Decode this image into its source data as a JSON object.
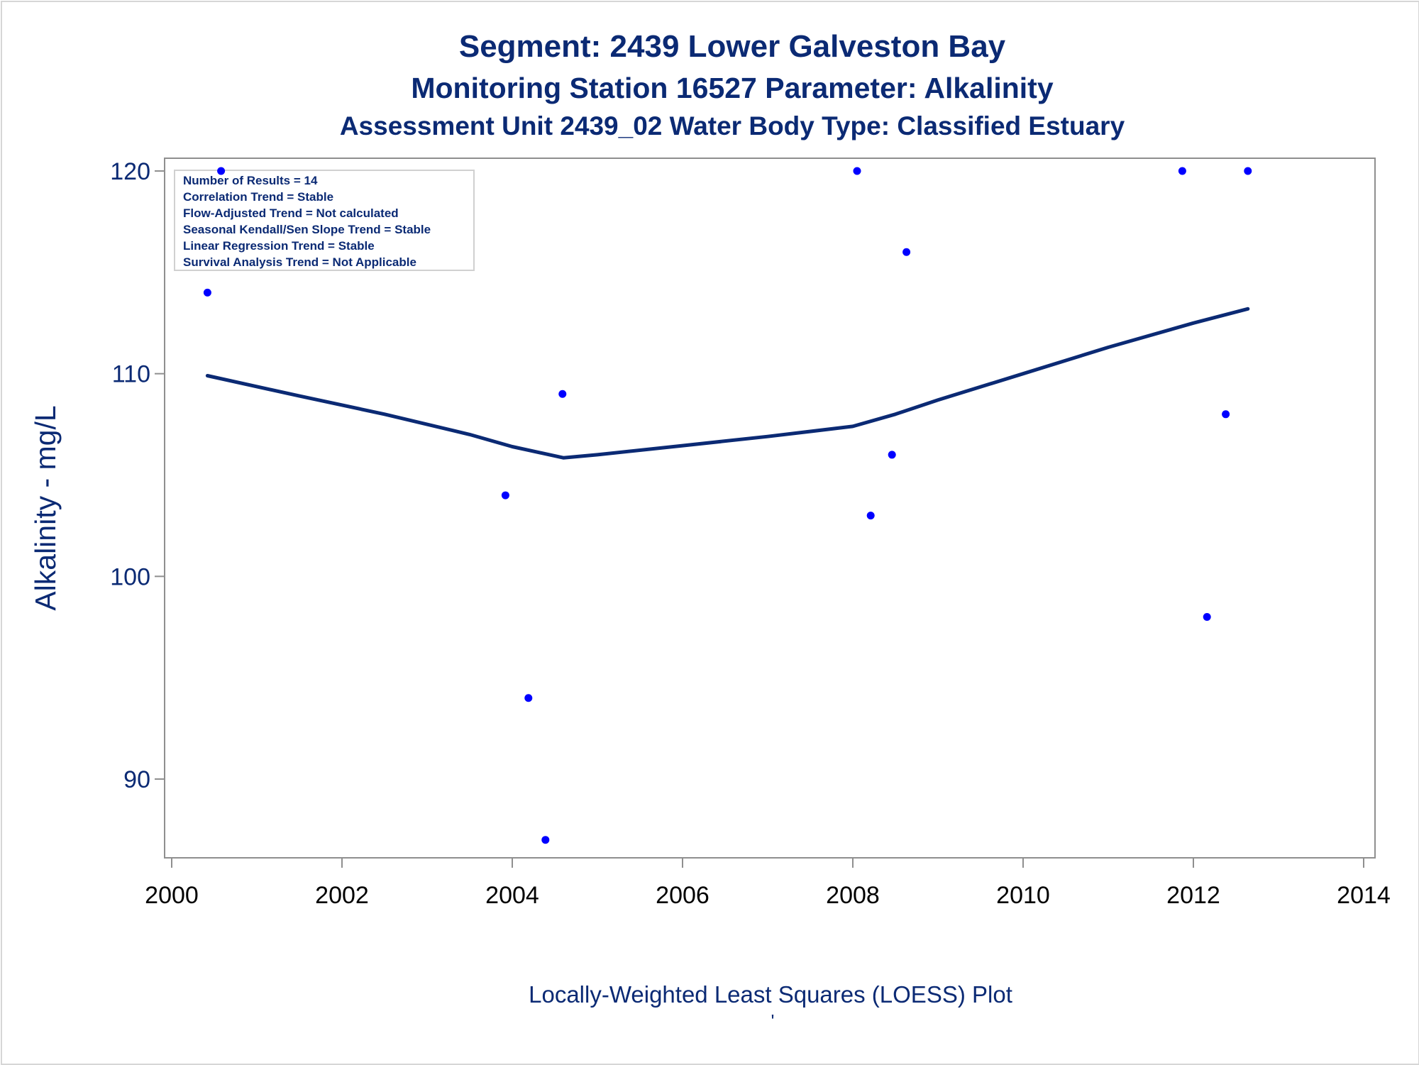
{
  "chart_data": {
    "type": "scatter",
    "title": "Segment: 2439  Lower Galveston Bay",
    "subtitle": "Monitoring Station 16527 Parameter: Alkalinity",
    "subtitle2": "Assessment Unit 2439_02   Water Body Type: Classified Estuary",
    "xlabel": "Locally-Weighted Least Squares (LOESS) Plot",
    "ylabel": "Alkalinity - mg/L",
    "footnote": "'",
    "xlim": [
      2000,
      2014
    ],
    "ylim": [
      86.5,
      120.7
    ],
    "xticks": [
      2000,
      2002,
      2004,
      2006,
      2008,
      2010,
      2012,
      2014
    ],
    "yticks": [
      90,
      100,
      110,
      120
    ],
    "grid": false,
    "stats": [
      "Number of Results = 14",
      "Correlation Trend = Stable",
      "Flow-Adjusted Trend = Not calculated",
      "Seasonal Kendall/Sen Slope Trend = Stable",
      "Linear Regression Trend = Stable",
      "Survival Analysis Trend = Not Applicable"
    ],
    "series": [
      {
        "type": "scatter",
        "points": [
          {
            "x": 2000.42,
            "y": 114
          },
          {
            "x": 2000.58,
            "y": 120
          },
          {
            "x": 2003.92,
            "y": 104
          },
          {
            "x": 2004.19,
            "y": 94
          },
          {
            "x": 2004.39,
            "y": 87
          },
          {
            "x": 2004.59,
            "y": 109
          },
          {
            "x": 2008.05,
            "y": 120
          },
          {
            "x": 2008.21,
            "y": 103
          },
          {
            "x": 2008.46,
            "y": 106
          },
          {
            "x": 2008.63,
            "y": 116
          },
          {
            "x": 2011.87,
            "y": 120
          },
          {
            "x": 2012.16,
            "y": 98
          },
          {
            "x": 2012.38,
            "y": 108
          },
          {
            "x": 2012.64,
            "y": 120
          }
        ]
      },
      {
        "type": "line",
        "points": [
          {
            "x": 2000.42,
            "y": 109.9
          },
          {
            "x": 2001.5,
            "y": 108.9
          },
          {
            "x": 2002.5,
            "y": 108.0
          },
          {
            "x": 2003.5,
            "y": 107.0
          },
          {
            "x": 2004.0,
            "y": 106.4
          },
          {
            "x": 2004.6,
            "y": 105.85
          },
          {
            "x": 2005.0,
            "y": 106.0
          },
          {
            "x": 2006.0,
            "y": 106.45
          },
          {
            "x": 2007.0,
            "y": 106.9
          },
          {
            "x": 2008.0,
            "y": 107.4
          },
          {
            "x": 2008.5,
            "y": 108.0
          },
          {
            "x": 2009.0,
            "y": 108.7
          },
          {
            "x": 2010.0,
            "y": 110.0
          },
          {
            "x": 2011.0,
            "y": 111.3
          },
          {
            "x": 2012.0,
            "y": 112.5
          },
          {
            "x": 2012.64,
            "y": 113.2
          }
        ]
      }
    ],
    "colors": {
      "text": "#0b2a74",
      "points": "#0000ff",
      "loess": "#0b2a74",
      "axis": "#8f8f8f",
      "tick_labels": "#000000",
      "y_tick_labels": "#0b2a74"
    }
  }
}
